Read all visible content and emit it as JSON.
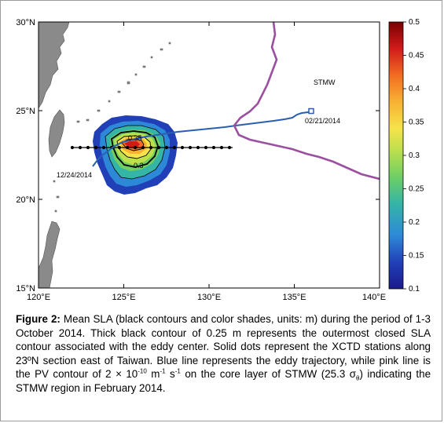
{
  "map": {
    "x_ticks": [
      "120°E",
      "125°E",
      "130°E",
      "135°E",
      "140°E"
    ],
    "y_ticks": [
      "30°N",
      "25°N",
      "20°N",
      "15°N"
    ],
    "annotations": {
      "region_label": "STMW",
      "start_date": "12/24/2014",
      "end_date": "02/21/2014",
      "contour_labels": [
        "0.35",
        "0.3"
      ]
    }
  },
  "colorbar": {
    "ticks": [
      "0.5",
      "0.45",
      "0.4",
      "0.35",
      "0.3",
      "0.25",
      "0.2",
      "0.15",
      "0.1"
    ],
    "colors": [
      "#7a0000",
      "#d11b1b",
      "#f26d22",
      "#f7b233",
      "#f5e34b",
      "#bde04d",
      "#6fcf63",
      "#35b5a6",
      "#2d89d8",
      "#2140b8",
      "#1a1a8c"
    ]
  },
  "colors": {
    "land": "#8a8a8a",
    "trajectory": "#2a5fb0",
    "pv_contour": "#9b4fa0",
    "stations": "#000000"
  },
  "caption": {
    "label": "Figure 2:",
    "part1": " Mean SLA (black contours and color shades, units: m) during the period of 1-3 October 2014. Thick black contour of 0.25 m represents the outermost closed SLA contour associated with the eddy center. Solid dots represent the XCTD stations along 23ºN section east of Taiwan. Blue line represents the eddy trajectory, while pink line is the PV contour of 2 × 10",
    "exp1": "-10",
    "part2": " m",
    "exp2": "-1",
    "part3": " s",
    "exp3": "-1",
    "part4": " on the core layer of STMW (25.3 σ",
    "sub1": "θ",
    "part5": ") indicating the STMW region in February 2014."
  }
}
